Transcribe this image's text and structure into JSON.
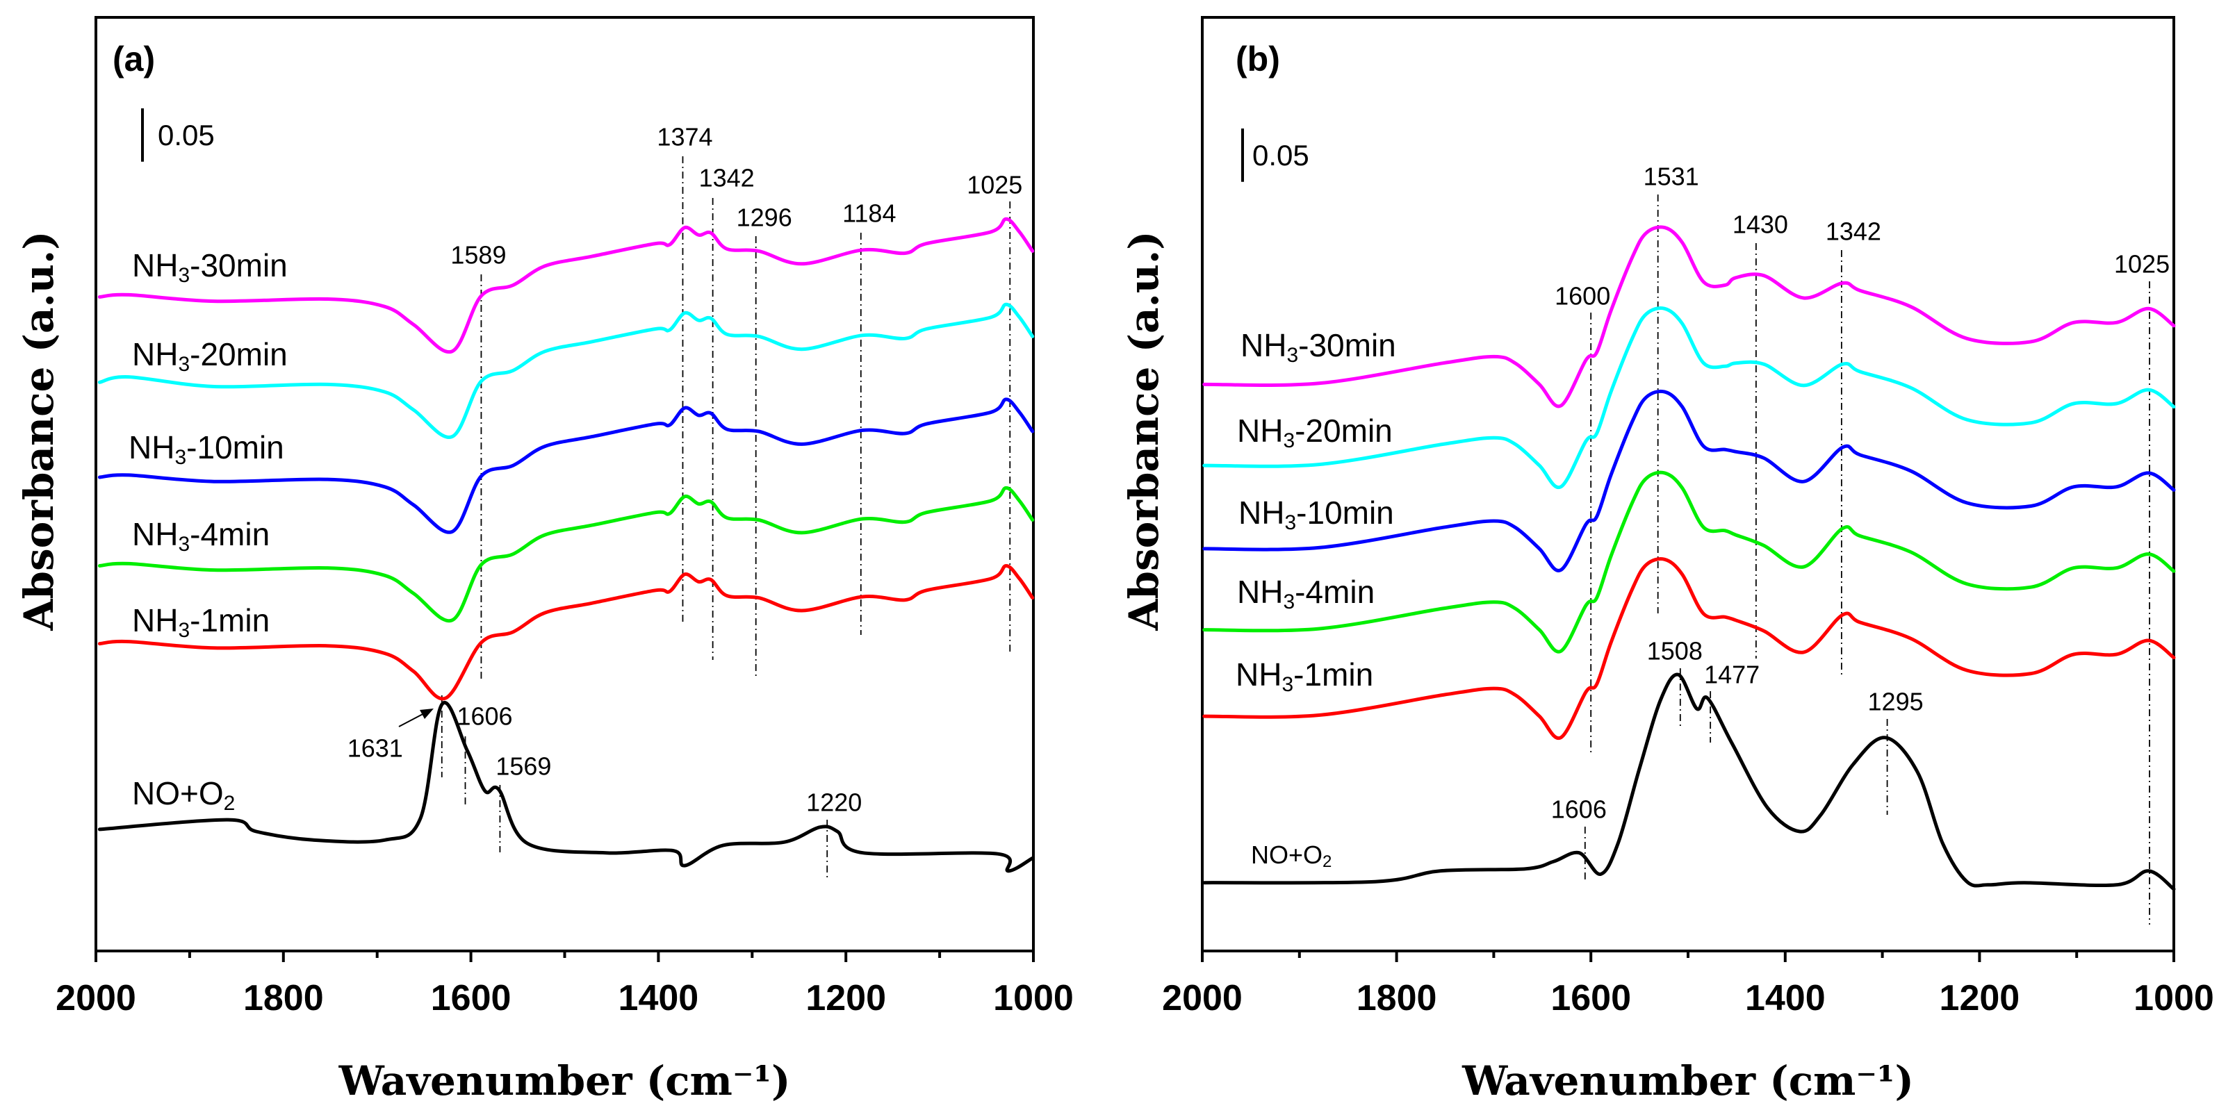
{
  "chart_data": [
    {
      "panel": "(a)",
      "type": "line",
      "xlabel": "Wavenumber (cm⁻¹)",
      "ylabel": "Absorbance (a.u.)",
      "xlim": [
        2000,
        1000
      ],
      "ylim": [
        0,
        0.875
      ],
      "xticks": [
        "2000",
        "1800",
        "1600",
        "1400",
        "1200",
        "1000"
      ],
      "scale_bar": {
        "label": "0.05",
        "value": 0.05
      },
      "series": [
        {
          "name": "NH3-30min",
          "label": {
            "main": "NH",
            "sub": "3",
            "rest": "-30min"
          },
          "color": "#ff00ff",
          "x": [
            1996,
            1965,
            1874,
            1753,
            1692,
            1661,
            1620,
            1589,
            1555,
            1521,
            1471,
            1403,
            1388,
            1372,
            1357,
            1344,
            1327,
            1293,
            1247,
            1182,
            1137,
            1114,
            1045,
            1029,
            1015,
            1001
          ],
          "values": [
            0.613,
            0.615,
            0.609,
            0.611,
            0.604,
            0.587,
            0.562,
            0.614,
            0.624,
            0.642,
            0.651,
            0.663,
            0.662,
            0.678,
            0.671,
            0.673,
            0.658,
            0.656,
            0.644,
            0.657,
            0.654,
            0.663,
            0.674,
            0.686,
            0.674,
            0.656
          ]
        },
        {
          "name": "NH3-20min",
          "label": {
            "main": "NH",
            "sub": "3",
            "rest": "-20min"
          },
          "color": "#00ffff",
          "x": [
            1996,
            1965,
            1874,
            1753,
            1692,
            1661,
            1620,
            1589,
            1555,
            1521,
            1471,
            1403,
            1388,
            1372,
            1357,
            1344,
            1327,
            1293,
            1247,
            1182,
            1137,
            1114,
            1045,
            1029,
            1015,
            1001
          ],
          "values": [
            0.533,
            0.538,
            0.529,
            0.531,
            0.524,
            0.507,
            0.482,
            0.534,
            0.544,
            0.562,
            0.571,
            0.583,
            0.582,
            0.598,
            0.591,
            0.593,
            0.578,
            0.576,
            0.564,
            0.577,
            0.574,
            0.583,
            0.594,
            0.606,
            0.594,
            0.576
          ]
        },
        {
          "name": "NH3-10min",
          "label": {
            "main": "NH",
            "sub": "3",
            "rest": "-10min"
          },
          "color": "#0000ff",
          "x": [
            1996,
            1965,
            1874,
            1753,
            1692,
            1661,
            1620,
            1589,
            1555,
            1521,
            1471,
            1403,
            1388,
            1372,
            1357,
            1344,
            1327,
            1293,
            1247,
            1182,
            1137,
            1114,
            1045,
            1029,
            1015,
            1001
          ],
          "values": [
            0.444,
            0.446,
            0.44,
            0.442,
            0.435,
            0.418,
            0.393,
            0.445,
            0.455,
            0.473,
            0.482,
            0.494,
            0.493,
            0.509,
            0.502,
            0.504,
            0.489,
            0.487,
            0.475,
            0.488,
            0.485,
            0.494,
            0.505,
            0.517,
            0.505,
            0.487
          ]
        },
        {
          "name": "NH3-4min",
          "label": {
            "main": "NH",
            "sub": "3",
            "rest": "-4min"
          },
          "color": "#00ee00",
          "x": [
            1996,
            1965,
            1874,
            1753,
            1692,
            1661,
            1620,
            1589,
            1555,
            1521,
            1471,
            1403,
            1388,
            1372,
            1357,
            1344,
            1327,
            1293,
            1247,
            1182,
            1137,
            1114,
            1045,
            1029,
            1015,
            1001
          ],
          "values": [
            0.361,
            0.363,
            0.357,
            0.359,
            0.352,
            0.335,
            0.31,
            0.362,
            0.372,
            0.39,
            0.399,
            0.411,
            0.41,
            0.426,
            0.419,
            0.421,
            0.406,
            0.404,
            0.392,
            0.405,
            0.402,
            0.411,
            0.422,
            0.434,
            0.422,
            0.404
          ]
        },
        {
          "name": "NH3-1min",
          "label": {
            "main": "NH",
            "sub": "3",
            "rest": "-1min"
          },
          "color": "#ff0000",
          "x": [
            1996,
            1965,
            1874,
            1753,
            1692,
            1661,
            1627,
            1589,
            1555,
            1521,
            1471,
            1403,
            1388,
            1372,
            1357,
            1344,
            1327,
            1293,
            1247,
            1182,
            1137,
            1114,
            1045,
            1029,
            1015,
            1001
          ],
          "values": [
            0.288,
            0.29,
            0.284,
            0.286,
            0.279,
            0.262,
            0.237,
            0.289,
            0.299,
            0.317,
            0.326,
            0.338,
            0.337,
            0.353,
            0.346,
            0.348,
            0.333,
            0.331,
            0.319,
            0.332,
            0.329,
            0.338,
            0.349,
            0.361,
            0.349,
            0.331
          ]
        },
        {
          "name": "NO+O2",
          "label": {
            "main": "NO+O",
            "sub": "2",
            "rest": ""
          },
          "color": "#000000",
          "x": [
            1996,
            1859,
            1829,
            1768,
            1692,
            1654,
            1631,
            1604,
            1585,
            1570,
            1540,
            1456,
            1384,
            1372,
            1331,
            1266,
            1228,
            1209,
            1182,
            1038,
            1027,
            1001
          ],
          "values": [
            0.114,
            0.123,
            0.112,
            0.104,
            0.104,
            0.124,
            0.231,
            0.188,
            0.15,
            0.151,
            0.101,
            0.092,
            0.094,
            0.08,
            0.099,
            0.102,
            0.116,
            0.112,
            0.092,
            0.091,
            0.075,
            0.087
          ]
        }
      ],
      "annotations": [
        {
          "text": "1589",
          "wn": 1589
        },
        {
          "text": "1374",
          "wn": 1374
        },
        {
          "text": "1342",
          "wn": 1342
        },
        {
          "text": "1296",
          "wn": 1296
        },
        {
          "text": "1184",
          "wn": 1184
        },
        {
          "text": "1025",
          "wn": 1025
        },
        {
          "text": "1631",
          "wn": 1631
        },
        {
          "text": "1606",
          "wn": 1606
        },
        {
          "text": "1569",
          "wn": 1569
        },
        {
          "text": "1220",
          "wn": 1220
        }
      ]
    },
    {
      "panel": "(b)",
      "type": "line",
      "xlabel": "Wavenumber (cm⁻¹)",
      "ylabel": "Absorbance (a.u.)",
      "xlim": [
        2000,
        1000
      ],
      "ylim": [
        0,
        0.875
      ],
      "xticks": [
        "2000",
        "1800",
        "1600",
        "1400",
        "1200",
        "1000"
      ],
      "scale_bar": {
        "label": "0.05",
        "value": 0.05
      },
      "series": [
        {
          "name": "NH3-30min",
          "label": {
            "main": "NH",
            "sub": "3",
            "rest": "-30min"
          },
          "color": "#ff00ff",
          "x": [
            1998,
            1880,
            1752,
            1700,
            1678,
            1653,
            1631,
            1605,
            1594,
            1579,
            1557,
            1543,
            1524,
            1506,
            1484,
            1462,
            1451,
            1422,
            1381,
            1341,
            1323,
            1271,
            1213,
            1147,
            1103,
            1059,
            1026,
            1000
          ],
          "values": [
            0.531,
            0.532,
            0.551,
            0.557,
            0.551,
            0.531,
            0.511,
            0.554,
            0.561,
            0.601,
            0.651,
            0.673,
            0.678,
            0.664,
            0.627,
            0.624,
            0.631,
            0.633,
            0.612,
            0.626,
            0.619,
            0.604,
            0.574,
            0.571,
            0.589,
            0.589,
            0.602,
            0.586
          ]
        },
        {
          "name": "NH3-20min",
          "label": {
            "main": "NH",
            "sub": "3",
            "rest": "-20min"
          },
          "color": "#00ffff",
          "x": [
            1998,
            1880,
            1752,
            1700,
            1678,
            1653,
            1631,
            1605,
            1594,
            1579,
            1557,
            1543,
            1524,
            1506,
            1484,
            1462,
            1451,
            1422,
            1381,
            1341,
            1323,
            1271,
            1213,
            1147,
            1103,
            1059,
            1026,
            1000
          ],
          "values": [
            0.455,
            0.456,
            0.475,
            0.481,
            0.475,
            0.455,
            0.435,
            0.478,
            0.485,
            0.525,
            0.575,
            0.597,
            0.602,
            0.588,
            0.551,
            0.548,
            0.551,
            0.55,
            0.53,
            0.55,
            0.543,
            0.528,
            0.498,
            0.495,
            0.513,
            0.513,
            0.526,
            0.51
          ]
        },
        {
          "name": "NH3-10min",
          "label": {
            "main": "NH",
            "sub": "3",
            "rest": "-10min"
          },
          "color": "#0000ff",
          "x": [
            1998,
            1880,
            1752,
            1700,
            1678,
            1653,
            1631,
            1605,
            1594,
            1579,
            1557,
            1543,
            1524,
            1506,
            1484,
            1462,
            1451,
            1422,
            1381,
            1341,
            1323,
            1271,
            1213,
            1147,
            1103,
            1059,
            1026,
            1000
          ],
          "values": [
            0.377,
            0.378,
            0.397,
            0.403,
            0.397,
            0.377,
            0.357,
            0.4,
            0.407,
            0.447,
            0.497,
            0.519,
            0.524,
            0.51,
            0.473,
            0.47,
            0.468,
            0.462,
            0.44,
            0.472,
            0.465,
            0.45,
            0.42,
            0.417,
            0.435,
            0.435,
            0.448,
            0.432
          ]
        },
        {
          "name": "NH3-4min",
          "label": {
            "main": "NH",
            "sub": "3",
            "rest": "-4min"
          },
          "color": "#00ee00",
          "x": [
            1998,
            1880,
            1752,
            1700,
            1678,
            1653,
            1631,
            1605,
            1594,
            1579,
            1557,
            1543,
            1524,
            1506,
            1484,
            1462,
            1451,
            1422,
            1381,
            1341,
            1323,
            1271,
            1213,
            1147,
            1103,
            1059,
            1026,
            1000
          ],
          "values": [
            0.301,
            0.302,
            0.321,
            0.327,
            0.321,
            0.301,
            0.281,
            0.324,
            0.331,
            0.371,
            0.421,
            0.443,
            0.448,
            0.434,
            0.397,
            0.394,
            0.39,
            0.38,
            0.36,
            0.396,
            0.389,
            0.374,
            0.344,
            0.341,
            0.359,
            0.359,
            0.372,
            0.356
          ]
        },
        {
          "name": "NH3-1min",
          "label": {
            "main": "NH",
            "sub": "3",
            "rest": "-1min"
          },
          "color": "#ff0000",
          "x": [
            1998,
            1880,
            1752,
            1700,
            1678,
            1653,
            1631,
            1605,
            1594,
            1579,
            1557,
            1543,
            1524,
            1506,
            1484,
            1462,
            1451,
            1422,
            1381,
            1341,
            1323,
            1271,
            1213,
            1147,
            1103,
            1059,
            1026,
            1000
          ],
          "values": [
            0.22,
            0.221,
            0.24,
            0.246,
            0.24,
            0.22,
            0.2,
            0.243,
            0.25,
            0.29,
            0.34,
            0.362,
            0.367,
            0.353,
            0.316,
            0.313,
            0.31,
            0.3,
            0.28,
            0.315,
            0.308,
            0.293,
            0.263,
            0.26,
            0.278,
            0.278,
            0.291,
            0.275
          ]
        },
        {
          "name": "NO+O2",
          "label": {
            "main": "NO+O",
            "sub": "2",
            "rest": ""
          },
          "color": "#000000",
          "x": [
            1998,
            1822,
            1755,
            1667,
            1638,
            1612,
            1590,
            1572,
            1550,
            1528,
            1510,
            1491,
            1480,
            1455,
            1418,
            1385,
            1363,
            1330,
            1297,
            1264,
            1238,
            1213,
            1191,
            1154,
            1059,
            1026,
            1000
          ],
          "values": [
            0.064,
            0.065,
            0.075,
            0.077,
            0.084,
            0.092,
            0.072,
            0.101,
            0.171,
            0.236,
            0.259,
            0.227,
            0.237,
            0.195,
            0.134,
            0.112,
            0.128,
            0.175,
            0.2,
            0.168,
            0.101,
            0.065,
            0.062,
            0.064,
            0.062,
            0.075,
            0.058
          ]
        }
      ],
      "annotations": [
        {
          "text": "1600",
          "wn": 1600
        },
        {
          "text": "1531",
          "wn": 1531
        },
        {
          "text": "1430",
          "wn": 1430
        },
        {
          "text": "1342",
          "wn": 1342
        },
        {
          "text": "1025",
          "wn": 1025
        },
        {
          "text": "1508",
          "wn": 1508
        },
        {
          "text": "1477",
          "wn": 1477
        },
        {
          "text": "1295",
          "wn": 1295
        },
        {
          "text": "1606",
          "wn": 1606
        }
      ]
    }
  ]
}
